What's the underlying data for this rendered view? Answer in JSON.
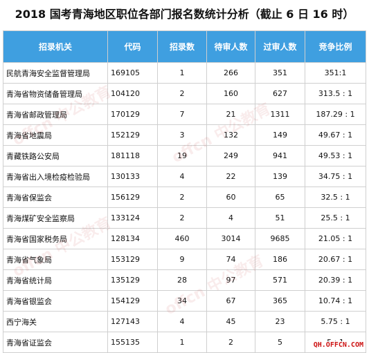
{
  "title": "2018 国考青海地区职位各部门报名数统计分析（截止 6 日 16 时）",
  "headers": [
    "招录机关",
    "代码",
    "招录数",
    "待审人数",
    "过审人数",
    "竞争比例"
  ],
  "rows": [
    {
      "name": "民航青海安全监督管理局",
      "code": "169105",
      "quota": "1",
      "pending": "266",
      "passed": "351",
      "ratio": "351:1"
    },
    {
      "name": "青海省物资储备管理局",
      "code": "104120",
      "quota": "2",
      "pending": "160",
      "passed": "627",
      "ratio": "313.5 : 1"
    },
    {
      "name": "青海省邮政管理局",
      "code": "170129",
      "quota": "7",
      "pending": "21",
      "passed": "1311",
      "ratio": "187.29 : 1"
    },
    {
      "name": "青海省地震局",
      "code": "152129",
      "quota": "3",
      "pending": "132",
      "passed": "149",
      "ratio": "49.67 : 1"
    },
    {
      "name": "青藏铁路公安局",
      "code": "181118",
      "quota": "19",
      "pending": "249",
      "passed": "941",
      "ratio": "49.53 : 1"
    },
    {
      "name": "青海省出入境检疫检验局",
      "code": "130133",
      "quota": "4",
      "pending": "22",
      "passed": "139",
      "ratio": "34.75 : 1"
    },
    {
      "name": "青海省保监会",
      "code": "156129",
      "quota": "2",
      "pending": "60",
      "passed": "65",
      "ratio": "32.5 : 1"
    },
    {
      "name": "青海煤矿安全监察局",
      "code": "133124",
      "quota": "2",
      "pending": "4",
      "passed": "51",
      "ratio": "25.5 : 1"
    },
    {
      "name": "青海省国家税务局",
      "code": "128134",
      "quota": "460",
      "pending": "3014",
      "passed": "9685",
      "ratio": "21.05 : 1"
    },
    {
      "name": "青海省气象局",
      "code": "153129",
      "quota": "9",
      "pending": "74",
      "passed": "186",
      "ratio": "20.67 : 1"
    },
    {
      "name": "青海省统计局",
      "code": "135129",
      "quota": "28",
      "pending": "97",
      "passed": "571",
      "ratio": "20.39 : 1"
    },
    {
      "name": "青海省银监会",
      "code": "154129",
      "quota": "34",
      "pending": "67",
      "passed": "365",
      "ratio": "10.74 : 1"
    },
    {
      "name": "西宁海关",
      "code": "127143",
      "quota": "4",
      "pending": "45",
      "passed": "23",
      "ratio": "5.75 : 1"
    },
    {
      "name": "青海省证监会",
      "code": "155135",
      "quota": "1",
      "pending": "2",
      "passed": "5",
      "ratio": "5 : 1"
    }
  ],
  "watermark": "offcn 中公教育",
  "source": "QH.OFFCN.COM",
  "colors": {
    "header_bg": "#3f9fe0",
    "header_text": "#ffffff",
    "source_text": "#cc1111"
  }
}
